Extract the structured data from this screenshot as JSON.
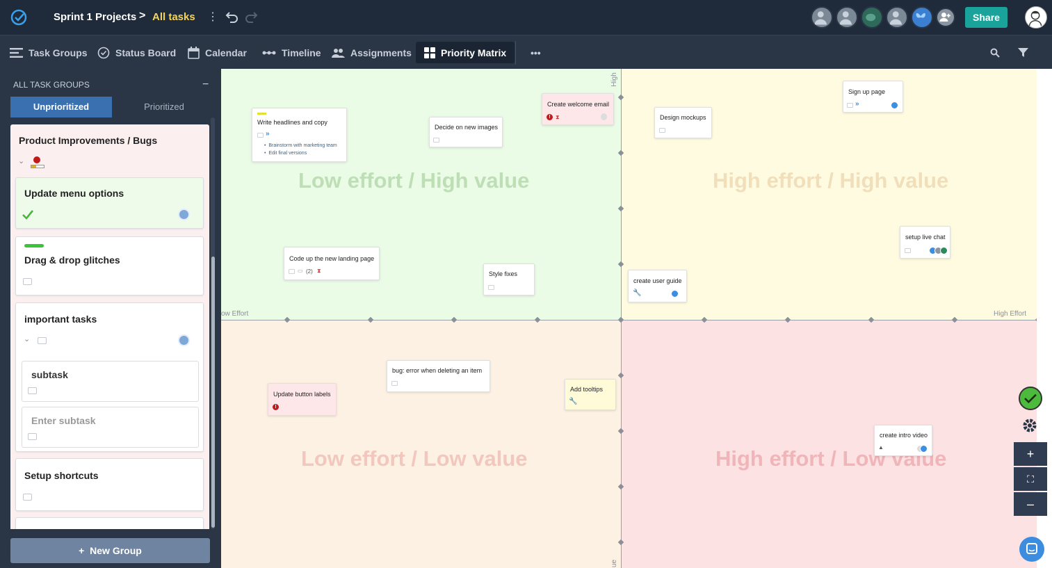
{
  "header": {
    "project": "Sprint 1 Projects",
    "separator": ">",
    "current": "All tasks",
    "share_label": "Share"
  },
  "nav": {
    "tabs": [
      {
        "label": "Task Groups",
        "icon": "list-icon"
      },
      {
        "label": "Status Board",
        "icon": "check-circle-icon"
      },
      {
        "label": "Calendar",
        "icon": "calendar-icon"
      },
      {
        "label": "Timeline",
        "icon": "timeline-icon"
      },
      {
        "label": "Assignments",
        "icon": "people-icon"
      },
      {
        "label": "Priority Matrix",
        "icon": "grid-icon",
        "active": true
      }
    ],
    "more": "•••"
  },
  "sidebar": {
    "title": "ALL TASK GROUPS",
    "collapse": "−",
    "tab_unprioritized": "Unprioritized",
    "tab_prioritized": "Prioritized",
    "group_title": "Product Improvements / Bugs",
    "cards": [
      {
        "title": "Update menu options",
        "completed": true
      },
      {
        "title": "Drag & drop glitches"
      },
      {
        "title": "important tasks"
      },
      {
        "title": "Setup shortcuts"
      }
    ],
    "subtask": "subtask",
    "subtask_placeholder": "Enter subtask",
    "new_group": "New Group",
    "new_group_plus": "+"
  },
  "matrix": {
    "quadrants": {
      "q1": "Low effort / High value",
      "q2": "High effort / High value",
      "q3": "Low effort / Low value",
      "q4": "High effort / Low value"
    },
    "axis": {
      "low_effort": "ow Effort",
      "high_effort": "High Effort",
      "high_value": "High",
      "low_value": "ue"
    },
    "tasks": {
      "write_headlines": {
        "title": "Write headlines and copy",
        "subtasks": [
          "Brainstorm with marketing team",
          "Edit final versions"
        ]
      },
      "decide_images": {
        "title": "Decide on new images"
      },
      "welcome_email": {
        "title": "Create welcome email"
      },
      "design_mockups": {
        "title": "Design mockups"
      },
      "signup_page": {
        "title": "Sign up page"
      },
      "live_chat": {
        "title": "setup live chat"
      },
      "landing_page": {
        "title": "Code up the new landing page",
        "comments": "(2)"
      },
      "style_fixes": {
        "title": "Style fixes"
      },
      "user_guide": {
        "title": "create user guide"
      },
      "button_labels": {
        "title": "Update button labels"
      },
      "bug_delete": {
        "title": "bug:  error when deleting an item"
      },
      "tooltips": {
        "title": "Add tooltips"
      },
      "intro_video": {
        "title": "create intro video"
      }
    }
  },
  "controls": {
    "zoom_in": "+",
    "fit": "⛶",
    "zoom_out": "–"
  },
  "colors": {
    "topbar": "#1f2a3a",
    "accent": "#1aa39a",
    "breadcrumb_current": "#f4d55a",
    "q1_bg": "#eafbe6",
    "q2_bg": "#fffbe0",
    "q3_bg": "#fdf1e4",
    "q4_bg": "#fde2e4"
  }
}
